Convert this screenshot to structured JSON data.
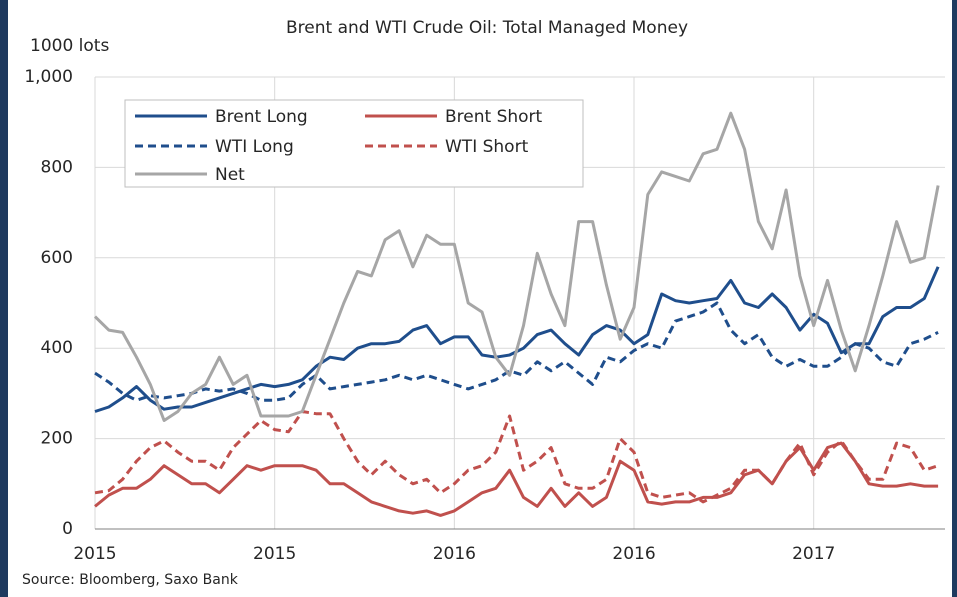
{
  "chart_data": {
    "type": "line",
    "title": "Brent and WTI Crude Oil: Total Managed Money",
    "y_label": "1000 lots",
    "source": "Source: Bloomberg, Saxo Bank",
    "x": [
      0,
      2,
      4,
      6,
      8,
      10,
      12,
      14,
      16,
      18,
      20,
      22,
      24,
      26,
      28,
      30,
      32,
      34,
      36,
      38,
      40,
      42,
      44,
      46,
      48,
      50,
      52,
      54,
      56,
      58,
      60,
      62,
      64,
      66,
      68,
      70,
      72,
      74,
      76,
      78,
      80,
      82,
      84,
      86,
      88,
      90,
      92,
      94,
      96,
      98,
      100,
      102,
      104,
      106,
      108,
      110,
      112,
      114,
      116,
      118,
      120,
      122
    ],
    "xlim": [
      0,
      123
    ],
    "xticks": [
      {
        "value": 0,
        "label": "2015"
      },
      {
        "value": 26,
        "label": "2015"
      },
      {
        "value": 52,
        "label": "2016"
      },
      {
        "value": 78,
        "label": "2016"
      },
      {
        "value": 104,
        "label": "2017"
      }
    ],
    "ylim": [
      0,
      1000
    ],
    "yticks": [
      0,
      200,
      400,
      600,
      800,
      {
        "value": 1000,
        "label": "1,000"
      }
    ],
    "grid": true,
    "legend": "upper left",
    "series": [
      {
        "name": "Brent Long",
        "color": "#1f4e8c",
        "dashed": false,
        "values": [
          260,
          270,
          290,
          315,
          285,
          265,
          270,
          270,
          280,
          290,
          300,
          310,
          320,
          315,
          320,
          330,
          360,
          380,
          375,
          400,
          410,
          410,
          415,
          440,
          450,
          410,
          425,
          425,
          385,
          380,
          385,
          400,
          430,
          440,
          410,
          385,
          430,
          450,
          440,
          410,
          430,
          520,
          505,
          500,
          505,
          510,
          550,
          500,
          490,
          520,
          490,
          440,
          475,
          455,
          390,
          410,
          410,
          470,
          490,
          490,
          510,
          580
        ]
      },
      {
        "name": "Brent Short",
        "color": "#c0504d",
        "dashed": false,
        "values": [
          50,
          75,
          90,
          90,
          110,
          140,
          120,
          100,
          100,
          80,
          110,
          140,
          130,
          140,
          140,
          140,
          130,
          100,
          100,
          80,
          60,
          50,
          40,
          35,
          40,
          30,
          40,
          60,
          80,
          90,
          130,
          70,
          50,
          90,
          50,
          80,
          50,
          70,
          150,
          130,
          60,
          55,
          60,
          60,
          70,
          70,
          80,
          120,
          130,
          100,
          150,
          180,
          130,
          180,
          190,
          150,
          100,
          95,
          95,
          100,
          95,
          95
        ]
      },
      {
        "name": "WTI Long",
        "color": "#1f4e8c",
        "dashed": true,
        "values": [
          345,
          325,
          300,
          285,
          295,
          290,
          295,
          300,
          310,
          305,
          310,
          300,
          285,
          285,
          290,
          320,
          340,
          310,
          315,
          320,
          325,
          330,
          340,
          330,
          340,
          330,
          320,
          310,
          320,
          330,
          350,
          340,
          370,
          350,
          370,
          345,
          320,
          380,
          370,
          395,
          410,
          400,
          460,
          470,
          480,
          500,
          440,
          410,
          430,
          380,
          360,
          375,
          360,
          360,
          380,
          410,
          400,
          370,
          360,
          410,
          420,
          435
        ]
      },
      {
        "name": "WTI Short",
        "color": "#c0504d",
        "dashed": true,
        "values": [
          80,
          85,
          110,
          150,
          180,
          195,
          170,
          150,
          150,
          130,
          180,
          210,
          240,
          220,
          215,
          260,
          255,
          255,
          200,
          150,
          120,
          150,
          120,
          100,
          110,
          80,
          100,
          130,
          140,
          170,
          250,
          130,
          150,
          180,
          100,
          90,
          90,
          110,
          200,
          170,
          80,
          70,
          75,
          80,
          60,
          75,
          90,
          130,
          130,
          100,
          150,
          190,
          120,
          170,
          195,
          150,
          110,
          110,
          190,
          180,
          130,
          140
        ]
      },
      {
        "name": "Net",
        "color": "#a6a6a6",
        "dashed": false,
        "values": [
          470,
          440,
          435,
          380,
          320,
          240,
          260,
          300,
          320,
          380,
          320,
          340,
          250,
          250,
          250,
          260,
          340,
          420,
          500,
          570,
          560,
          640,
          660,
          580,
          650,
          630,
          630,
          500,
          480,
          380,
          340,
          450,
          610,
          520,
          450,
          680,
          680,
          540,
          420,
          490,
          740,
          790,
          780,
          770,
          830,
          840,
          920,
          840,
          680,
          620,
          750,
          560,
          450,
          550,
          440,
          350,
          450,
          560,
          680,
          590,
          600,
          760
        ]
      }
    ]
  }
}
